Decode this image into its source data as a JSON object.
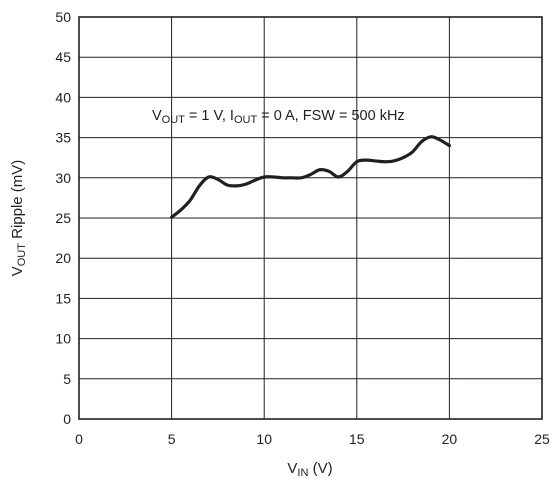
{
  "chart_data": {
    "type": "line",
    "xlabel": {
      "main": "V",
      "sub": "IN",
      "rest": " (V)"
    },
    "ylabel": {
      "main": "V",
      "sub": "OUT",
      "rest": " Ripple (mV)"
    },
    "annotation": {
      "parts": [
        {
          "t": "V"
        },
        {
          "t": "OUT",
          "sub": true
        },
        {
          "t": " = 1 V, I"
        },
        {
          "t": "OUT",
          "sub": true
        },
        {
          "t": " = 0 A, FSW = 500 kHz"
        }
      ]
    },
    "xlim": [
      0,
      25
    ],
    "ylim": [
      0,
      50
    ],
    "x_ticks": [
      0,
      5,
      10,
      15,
      20,
      25
    ],
    "y_ticks": [
      0,
      5,
      10,
      15,
      20,
      25,
      30,
      35,
      40,
      45,
      50
    ],
    "grid": true,
    "series": [
      {
        "color": "#231f20",
        "x": [
          5.0,
          5.5,
          6.0,
          6.5,
          7.0,
          7.5,
          8.0,
          8.5,
          9.0,
          9.5,
          10.0,
          10.5,
          11.0,
          11.5,
          12.0,
          12.5,
          13.0,
          13.5,
          14.0,
          14.5,
          15.0,
          15.5,
          16.0,
          16.5,
          17.0,
          17.5,
          18.0,
          18.5,
          19.0,
          19.5,
          20.0
        ],
        "y": [
          25.1,
          26.0,
          27.2,
          29.0,
          30.1,
          29.8,
          29.1,
          29.0,
          29.2,
          29.7,
          30.1,
          30.1,
          30.0,
          30.0,
          30.0,
          30.4,
          31.0,
          30.8,
          30.1,
          30.8,
          32.0,
          32.2,
          32.1,
          32.0,
          32.1,
          32.5,
          33.2,
          34.5,
          35.1,
          34.7,
          34.0
        ]
      }
    ]
  }
}
